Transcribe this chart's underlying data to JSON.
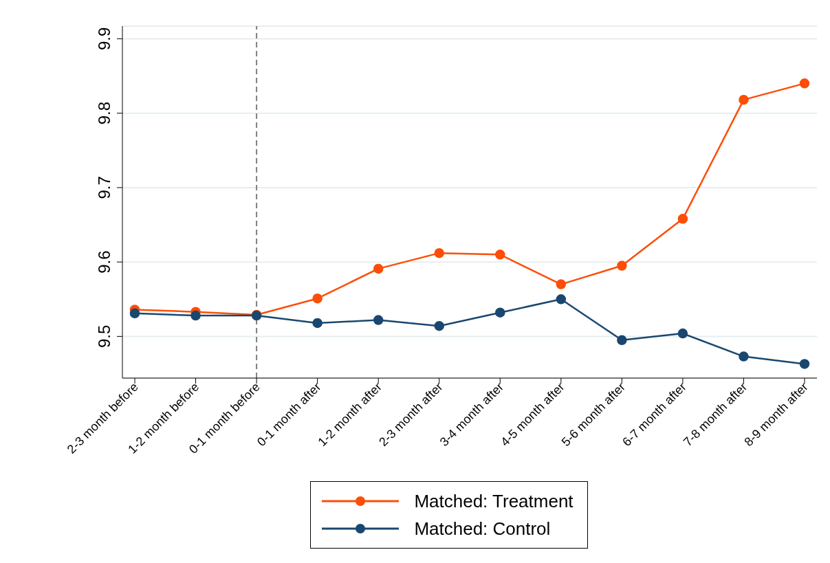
{
  "chart_data": {
    "type": "line",
    "categories": [
      "2-3 month before",
      "1-2 month before",
      "0-1 month before",
      "0-1 month after",
      "1-2 month after",
      "2-3 month after",
      "3-4 month after",
      "4-5 month after",
      "5-6 month after",
      "6-7 month after",
      "7-8 month after",
      "8-9 month after"
    ],
    "series": [
      {
        "name": "Matched: Treatment",
        "color": "#fc4e07",
        "values": [
          9.536,
          9.533,
          9.529,
          9.551,
          9.591,
          9.612,
          9.61,
          9.57,
          9.595,
          9.658,
          9.818,
          9.84
        ]
      },
      {
        "name": "Matched: Control",
        "color": "#1a476f",
        "values": [
          9.531,
          9.528,
          9.528,
          9.518,
          9.522,
          9.514,
          9.532,
          9.55,
          9.495,
          9.504,
          9.473,
          9.463
        ]
      }
    ],
    "ylim": [
      9.444,
      9.917
    ],
    "yticks": [
      9.5,
      9.6,
      9.7,
      9.8,
      9.9
    ],
    "grid": "y",
    "legend": "bottom",
    "marker": "circle",
    "line_style": "solid",
    "ref_lines": [
      {
        "axis": "x",
        "value": "0-1 month before",
        "color": "#7f7f7f",
        "line_style": "dashed"
      }
    ]
  }
}
